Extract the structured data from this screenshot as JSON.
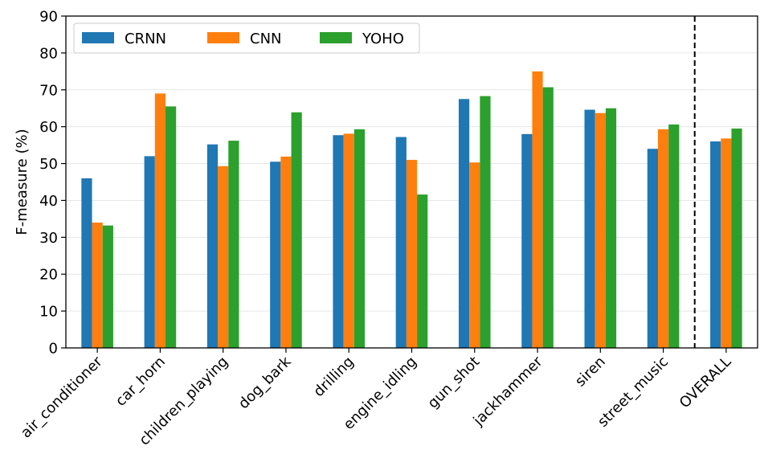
{
  "chart_data": {
    "type": "bar",
    "ylabel": "F-measure (%)",
    "xlabel": "",
    "title": "",
    "ylim": [
      0,
      90
    ],
    "yticks": [
      0,
      10,
      20,
      30,
      40,
      50,
      60,
      70,
      80,
      90
    ],
    "categories": [
      "air_conditioner",
      "car_horn",
      "children_playing",
      "dog_bark",
      "drilling",
      "engine_idling",
      "gun_shot",
      "jackhammer",
      "siren",
      "street_music",
      "OVERALL"
    ],
    "series": [
      {
        "name": "CRNN",
        "color": "#1f77b4",
        "values": [
          46.0,
          52.0,
          55.2,
          50.5,
          57.7,
          57.2,
          67.5,
          58.0,
          64.6,
          54.0,
          56.0
        ]
      },
      {
        "name": "CNN",
        "color": "#ff7f0e",
        "values": [
          34.0,
          69.0,
          49.3,
          51.9,
          58.1,
          51.0,
          50.3,
          75.0,
          63.7,
          59.3,
          56.8
        ]
      },
      {
        "name": "YOHO",
        "color": "#2ca02c",
        "values": [
          33.2,
          65.5,
          56.2,
          63.9,
          59.3,
          41.6,
          68.3,
          70.7,
          65.0,
          60.6,
          59.5
        ]
      }
    ],
    "grid": "y",
    "legend": "top-left",
    "separator_before": "OVERALL"
  }
}
